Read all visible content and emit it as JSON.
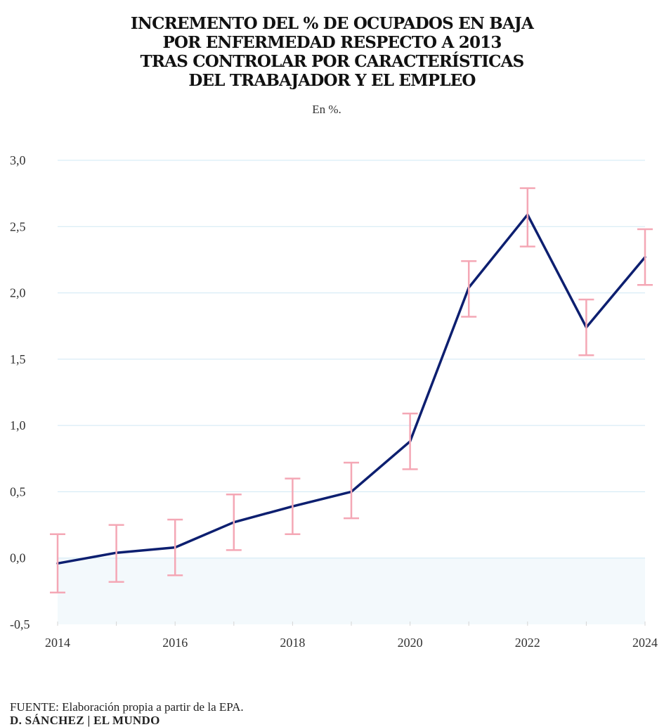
{
  "title_lines": [
    "INCREMENTO DEL % DE OCUPADOS EN BAJA",
    "POR ENFERMEDAD RESPECTO A 2013",
    "TRAS CONTROLAR POR CARACTERÍSTICAS",
    "DEL TRABAJADOR Y EL EMPLEO"
  ],
  "subtitle": "En %.",
  "footer": {
    "source_label": "FUENTE:",
    "source_text": " Elaboración propia a partir de la EPA.",
    "credit": "D. SÁNCHEZ | EL MUNDO"
  },
  "colors": {
    "line": "#0d1f70",
    "error_bar": "#f4a7b5",
    "grid": "#cfe8f4",
    "negative_fill": "#f3f9fc",
    "tick": "#d5d5d5"
  },
  "chart_data": {
    "type": "line",
    "title": "INCREMENTO DEL % DE OCUPADOS EN BAJA POR ENFERMEDAD RESPECTO A 2013 TRAS CONTROLAR POR CARACTERÍSTICAS DEL TRABAJADOR Y EL EMPLEO",
    "subtitle": "En %.",
    "xlabel": "",
    "ylabel": "",
    "x": [
      2014,
      2015,
      2016,
      2017,
      2018,
      2019,
      2020,
      2021,
      2022,
      2023,
      2024
    ],
    "x_tick_labels": [
      "2014",
      "2016",
      "2018",
      "2020",
      "2022",
      "2024"
    ],
    "x_tick_values": [
      2014,
      2016,
      2018,
      2020,
      2022,
      2024
    ],
    "y_tick_labels": [
      "3,0",
      "2,5",
      "2,0",
      "1,5",
      "1,0",
      "0,5",
      "0,0",
      "-0,5"
    ],
    "y_tick_values": [
      3.0,
      2.5,
      2.0,
      1.5,
      1.0,
      0.5,
      0.0,
      -0.5
    ],
    "ylim": [
      -0.5,
      3.0
    ],
    "xlim": [
      2014,
      2024
    ],
    "grid": true,
    "series": [
      {
        "name": "Incremento respecto a 2013",
        "values": [
          -0.04,
          0.04,
          0.08,
          0.27,
          0.39,
          0.5,
          0.88,
          2.04,
          2.59,
          1.74,
          2.27
        ],
        "lower": [
          -0.26,
          -0.18,
          -0.13,
          0.06,
          0.18,
          0.3,
          0.67,
          1.82,
          2.35,
          1.53,
          2.06
        ],
        "upper": [
          0.18,
          0.25,
          0.29,
          0.48,
          0.6,
          0.72,
          1.09,
          2.24,
          2.79,
          1.95,
          2.48
        ]
      }
    ]
  }
}
